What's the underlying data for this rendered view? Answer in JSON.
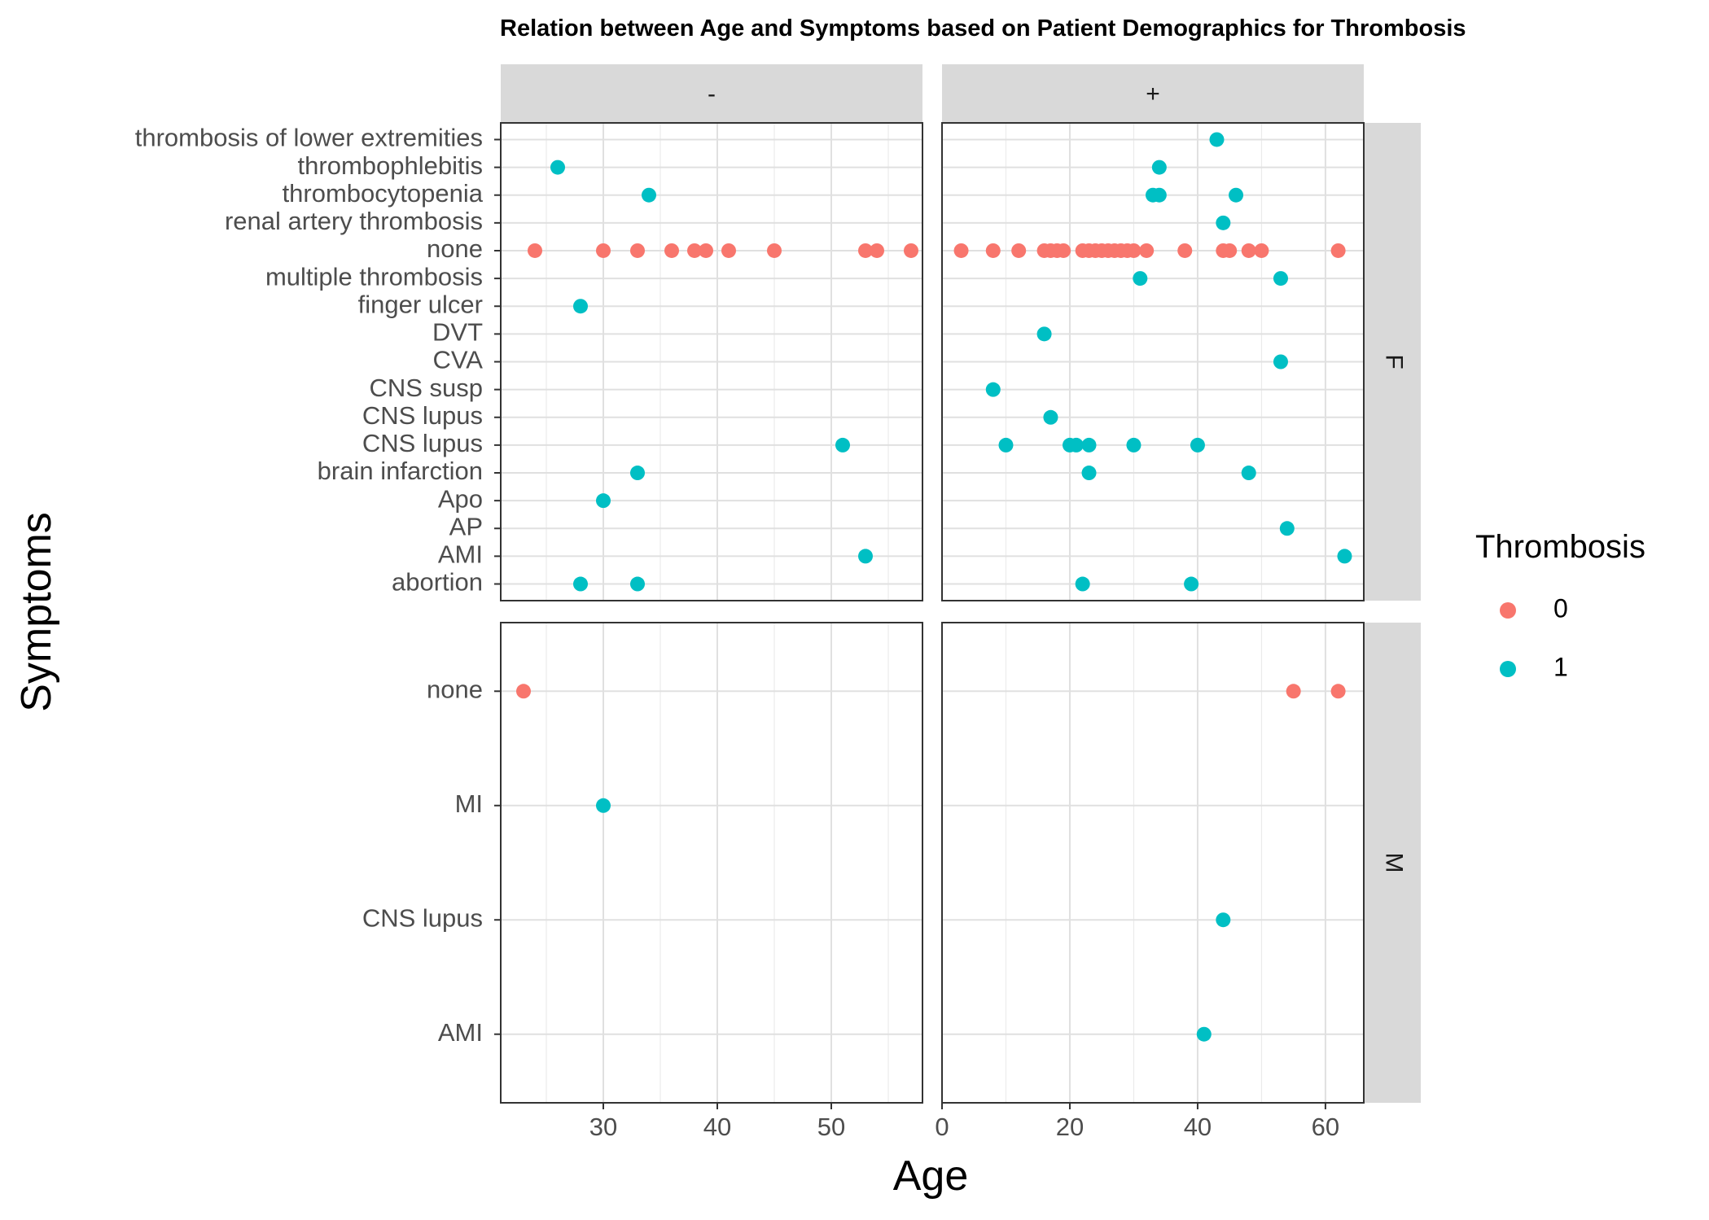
{
  "chart_data": {
    "type": "scatter",
    "title": "Relation between Age and Symptoms based on Patient Demographics for Thrombosis",
    "xlabel": "Age",
    "ylabel": "Symptoms",
    "grid": true,
    "legend": {
      "title": "Thrombosis",
      "placement": "right",
      "entries": [
        {
          "label": "0",
          "color": "#F8766D"
        },
        {
          "label": "1",
          "color": "#00BFC4"
        }
      ]
    },
    "facet_columns": [
      "-",
      "+"
    ],
    "facet_rows": [
      "F",
      "M"
    ],
    "column_x_ticks": [
      {
        "ticks": [
          30,
          40,
          50
        ],
        "xlim": [
          21,
          58
        ]
      },
      {
        "ticks": [
          0,
          20,
          40,
          60
        ],
        "xlim": [
          0,
          66
        ]
      }
    ],
    "row_categories": [
      [
        "abortion",
        "AMI",
        "AP",
        "Apo",
        "brain infarction",
        "CNS lupus",
        "CNS lupus ",
        "CNS susp",
        "CVA",
        "DVT",
        "finger ulcer",
        "multiple thrombosis",
        "none",
        "renal artery thrombosis",
        "thrombocytopenia",
        "thrombophlebitis",
        "thrombosis of lower extremities"
      ],
      [
        "AMI",
        "CNS lupus",
        "MI",
        "none"
      ]
    ],
    "panels": [
      {
        "column": "-",
        "row": "F",
        "series": [
          {
            "thrombosis": "0",
            "points": [
              {
                "x": 24,
                "y": "none"
              },
              {
                "x": 30,
                "y": "none"
              },
              {
                "x": 33,
                "y": "none"
              },
              {
                "x": 36,
                "y": "none"
              },
              {
                "x": 38,
                "y": "none"
              },
              {
                "x": 39,
                "y": "none"
              },
              {
                "x": 41,
                "y": "none"
              },
              {
                "x": 45,
                "y": "none"
              },
              {
                "x": 53,
                "y": "none"
              },
              {
                "x": 54,
                "y": "none"
              },
              {
                "x": 57,
                "y": "none"
              }
            ]
          },
          {
            "thrombosis": "1",
            "points": [
              {
                "x": 26,
                "y": "thrombophlebitis"
              },
              {
                "x": 34,
                "y": "thrombocytopenia"
              },
              {
                "x": 28,
                "y": "finger ulcer"
              },
              {
                "x": 51,
                "y": "CNS lupus"
              },
              {
                "x": 33,
                "y": "brain infarction"
              },
              {
                "x": 30,
                "y": "Apo"
              },
              {
                "x": 53,
                "y": "AMI"
              },
              {
                "x": 28,
                "y": "abortion"
              },
              {
                "x": 33,
                "y": "abortion"
              }
            ]
          }
        ]
      },
      {
        "column": "+",
        "row": "F",
        "series": [
          {
            "thrombosis": "0",
            "points": [
              {
                "x": 3,
                "y": "none"
              },
              {
                "x": 8,
                "y": "none"
              },
              {
                "x": 12,
                "y": "none"
              },
              {
                "x": 16,
                "y": "none"
              },
              {
                "x": 17,
                "y": "none"
              },
              {
                "x": 18,
                "y": "none"
              },
              {
                "x": 19,
                "y": "none"
              },
              {
                "x": 22,
                "y": "none"
              },
              {
                "x": 23,
                "y": "none"
              },
              {
                "x": 24,
                "y": "none"
              },
              {
                "x": 25,
                "y": "none"
              },
              {
                "x": 26,
                "y": "none"
              },
              {
                "x": 27,
                "y": "none"
              },
              {
                "x": 28,
                "y": "none"
              },
              {
                "x": 29,
                "y": "none"
              },
              {
                "x": 30,
                "y": "none"
              },
              {
                "x": 32,
                "y": "none"
              },
              {
                "x": 38,
                "y": "none"
              },
              {
                "x": 44,
                "y": "none"
              },
              {
                "x": 45,
                "y": "none"
              },
              {
                "x": 48,
                "y": "none"
              },
              {
                "x": 50,
                "y": "none"
              },
              {
                "x": 62,
                "y": "none"
              }
            ]
          },
          {
            "thrombosis": "1",
            "points": [
              {
                "x": 43,
                "y": "thrombosis of lower extremities"
              },
              {
                "x": 34,
                "y": "thrombophlebitis"
              },
              {
                "x": 33,
                "y": "thrombocytopenia"
              },
              {
                "x": 34,
                "y": "thrombocytopenia"
              },
              {
                "x": 46,
                "y": "thrombocytopenia"
              },
              {
                "x": 44,
                "y": "renal artery thrombosis"
              },
              {
                "x": 31,
                "y": "multiple thrombosis"
              },
              {
                "x": 53,
                "y": "multiple thrombosis"
              },
              {
                "x": 16,
                "y": "DVT"
              },
              {
                "x": 53,
                "y": "CVA"
              },
              {
                "x": 8,
                "y": "CNS susp"
              },
              {
                "x": 17,
                "y": "CNS lupus "
              },
              {
                "x": 10,
                "y": "CNS lupus"
              },
              {
                "x": 20,
                "y": "CNS lupus"
              },
              {
                "x": 21,
                "y": "CNS lupus"
              },
              {
                "x": 23,
                "y": "CNS lupus"
              },
              {
                "x": 30,
                "y": "CNS lupus"
              },
              {
                "x": 40,
                "y": "CNS lupus"
              },
              {
                "x": 23,
                "y": "brain infarction"
              },
              {
                "x": 48,
                "y": "brain infarction"
              },
              {
                "x": 54,
                "y": "AP"
              },
              {
                "x": 63,
                "y": "AMI"
              },
              {
                "x": 22,
                "y": "abortion"
              },
              {
                "x": 39,
                "y": "abortion"
              }
            ]
          }
        ]
      },
      {
        "column": "-",
        "row": "M",
        "series": [
          {
            "thrombosis": "0",
            "points": [
              {
                "x": 23,
                "y": "none"
              }
            ]
          },
          {
            "thrombosis": "1",
            "points": [
              {
                "x": 30,
                "y": "MI"
              }
            ]
          }
        ]
      },
      {
        "column": "+",
        "row": "M",
        "series": [
          {
            "thrombosis": "0",
            "points": [
              {
                "x": 55,
                "y": "none"
              },
              {
                "x": 62,
                "y": "none"
              }
            ]
          },
          {
            "thrombosis": "1",
            "points": [
              {
                "x": 44,
                "y": "CNS lupus"
              },
              {
                "x": 41,
                "y": "AMI"
              }
            ]
          }
        ]
      }
    ]
  }
}
